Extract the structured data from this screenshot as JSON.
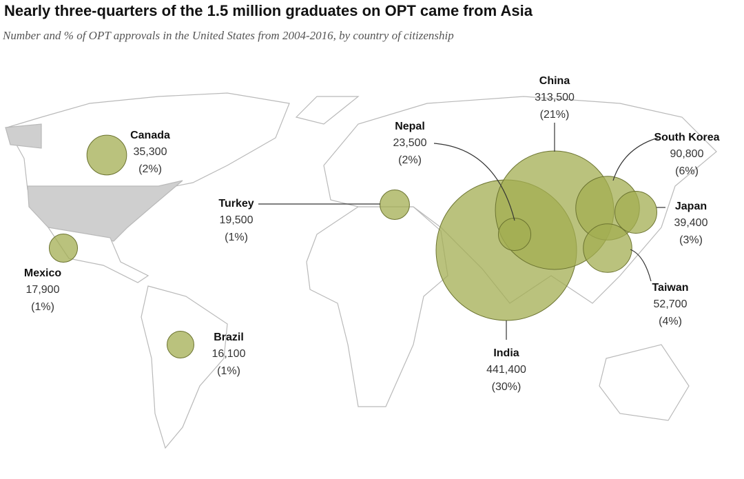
{
  "chart_data": {
    "type": "bubble-map",
    "title": "Nearly three-quarters of the 1.5 million graduates on OPT came from Asia",
    "subtitle": "Number and % of OPT approvals in the United States from 2004-2016, by country of citizenship",
    "categories": [
      "Canada",
      "Mexico",
      "Brazil",
      "Turkey",
      "Nepal",
      "China",
      "India",
      "South Korea",
      "Japan",
      "Taiwan"
    ],
    "values": [
      35300,
      17900,
      16100,
      19500,
      23500,
      313500,
      441400,
      90800,
      39400,
      52700
    ],
    "value_labels": [
      "35,300",
      "17,900",
      "16,100",
      "19,500",
      "23,500",
      "313,500",
      "441,400",
      "90,800",
      "39,400",
      "52,700"
    ],
    "shares": [
      2,
      1,
      1,
      1,
      2,
      21,
      30,
      6,
      3,
      4
    ],
    "share_labels": [
      "(2%)",
      "(1%)",
      "(1%)",
      "(1%)",
      "(2%)",
      "(21%)",
      "(30%)",
      "(6%)",
      "(3%)",
      "(4%)"
    ],
    "color": "#a3ad52"
  }
}
